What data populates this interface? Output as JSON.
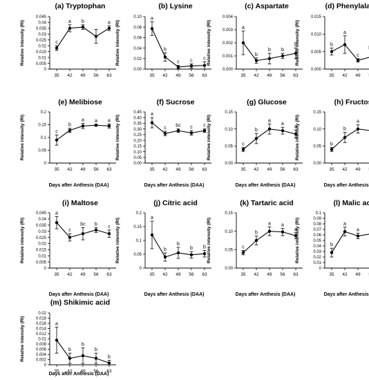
{
  "chart_data": [
    {
      "type": "line",
      "title": "(a) Tryptophan",
      "xlabel": "",
      "ylabel": "Relative intensity (RI)",
      "x": [
        35,
        42,
        49,
        56,
        63
      ],
      "ylim": [
        0,
        0.045
      ],
      "yticks": [
        "0",
        "0.005",
        "0.01",
        "0.015",
        "0.02",
        "0.025",
        "0.03",
        "0.035",
        "0.04",
        "0.045"
      ],
      "series": [
        {
          "values": [
            0.018,
            0.035,
            0.036,
            0.028,
            0.035
          ],
          "errors": [
            0.002,
            0.003,
            0.002,
            0.006,
            0.002
          ]
        }
      ],
      "letters": [
        "c",
        "a",
        "b",
        "",
        "a"
      ]
    },
    {
      "type": "line",
      "title": "(b) Lysine",
      "xlabel": "",
      "ylabel": "Relative intensity (RI)",
      "x": [
        35,
        42,
        49,
        56,
        63
      ],
      "ylim": [
        0,
        0.1
      ],
      "yticks": [
        "0.00",
        "0.02",
        "0.04",
        "0.06",
        "0.08",
        "0.10"
      ],
      "series": [
        {
          "values": [
            0.077,
            0.023,
            0.004,
            0.006,
            0.007
          ],
          "errors": [
            0.013,
            0.008,
            0.003,
            0.004,
            0.007
          ]
        }
      ],
      "letters": [
        "a",
        "b",
        "c",
        "c",
        "c"
      ]
    },
    {
      "type": "line",
      "title": "(c) Aspartate",
      "xlabel": "",
      "ylabel": "Relative intensity (RI)",
      "x": [
        35,
        42,
        49,
        56,
        63
      ],
      "ylim": [
        0,
        0.004
      ],
      "yticks": [
        "0.000",
        "0.001",
        "0.002",
        "0.003",
        "0.004"
      ],
      "series": [
        {
          "values": [
            0.002,
            0.00065,
            0.0008,
            0.001,
            0.0012
          ],
          "errors": [
            0.0009,
            0.0002,
            0.0004,
            0.0002,
            0.0004
          ]
        }
      ],
      "letters": [
        "a",
        "b",
        "b",
        "b",
        "b"
      ]
    },
    {
      "type": "line",
      "title": "(d) Phenylalanine",
      "xlabel": "",
      "ylabel": "Relative intensity (RI)",
      "x": [
        35,
        42,
        49,
        56,
        63
      ],
      "ylim": [
        0,
        0.015
      ],
      "yticks": [
        "0.000",
        "0.005",
        "0.010",
        "0.015"
      ],
      "series": [
        {
          "values": [
            0.005,
            0.007,
            0.0025,
            0.0035,
            0.0025
          ],
          "errors": [
            0.001,
            0.0025,
            0.0005,
            0.0015,
            0.0004
          ]
        }
      ],
      "letters": [
        "b",
        "a",
        "c",
        "bc",
        "c"
      ]
    },
    {
      "type": "line",
      "title": "(e) Melibiose",
      "xlabel": "Days after Anthesis (DAA)",
      "ylabel": "Relative intensity (RI)",
      "x": [
        35,
        42,
        49,
        56,
        63
      ],
      "ylim": [
        0,
        0.2
      ],
      "yticks": [
        "0",
        "0.05",
        "0.1",
        "0.15",
        "0.2"
      ],
      "series": [
        {
          "values": [
            0.09,
            0.128,
            0.145,
            0.148,
            0.145
          ],
          "errors": [
            0.02,
            0.008,
            0.01,
            0.004,
            0.008
          ]
        }
      ],
      "letters": [
        "c",
        "b",
        "a",
        "a",
        "a"
      ]
    },
    {
      "type": "line",
      "title": "(f) Sucrose",
      "xlabel": "Days after Anthesis (DAA)",
      "ylabel": "Relative intensity (RI)",
      "x": [
        35,
        42,
        49,
        56,
        63
      ],
      "ylim": [
        0,
        0.45
      ],
      "yticks": [
        "0.00",
        "0.05",
        "0.10",
        "0.15",
        "0.20",
        "0.25",
        "0.30",
        "0.35",
        "0.40",
        "0.45"
      ],
      "series": [
        {
          "values": [
            0.355,
            0.26,
            0.285,
            0.265,
            0.285
          ],
          "errors": [
            0.045,
            0.02,
            0.015,
            0.02,
            0.015
          ]
        }
      ],
      "letters": [
        "a",
        "c",
        "bc",
        "c",
        "c"
      ]
    },
    {
      "type": "line",
      "title": "(g) Glucose",
      "xlabel": "Days after Anthesis (DAA)",
      "ylabel": "Relative intensity (RI)",
      "x": [
        35,
        42,
        49,
        56,
        63
      ],
      "ylim": [
        0,
        0.15
      ],
      "yticks": [
        "0.00",
        "0.05",
        "0.10",
        "0.15"
      ],
      "series": [
        {
          "values": [
            0.04,
            0.072,
            0.1,
            0.095,
            0.085
          ],
          "errors": [
            0.006,
            0.015,
            0.015,
            0.01,
            0.012
          ]
        }
      ],
      "letters": [
        "c",
        "b",
        "a",
        "a",
        "a"
      ]
    },
    {
      "type": "line",
      "title": "(h) Fructose",
      "xlabel": "Days after Anthesis (DAA)",
      "ylabel": "Relative intensity (RI)",
      "x": [
        35,
        42,
        49,
        56,
        63
      ],
      "ylim": [
        0,
        0.15
      ],
      "yticks": [
        "0.00",
        "0.05",
        "0.10",
        "0.15"
      ],
      "series": [
        {
          "values": [
            0.04,
            0.075,
            0.1,
            0.095,
            0.085
          ],
          "errors": [
            0.006,
            0.015,
            0.012,
            0.01,
            0.02
          ]
        }
      ],
      "letters": [
        "b",
        "b",
        "a",
        "a",
        "a"
      ]
    },
    {
      "type": "line",
      "title": "(i) Maltose",
      "xlabel": "Days after Anthesis (DAA)",
      "ylabel": "Relative intensity (RI)",
      "x": [
        35,
        42,
        49,
        56,
        63
      ],
      "ylim": [
        0,
        0.045
      ],
      "yticks": [
        "0",
        "0.005",
        "0.01",
        "0.015",
        "0.02",
        "0.025",
        "0.03",
        "0.035",
        "0.04",
        "0.045"
      ],
      "series": [
        {
          "values": [
            0.037,
            0.025,
            0.028,
            0.031,
            0.028
          ],
          "errors": [
            0.005,
            0.003,
            0.005,
            0.002,
            0.003
          ]
        }
      ],
      "letters": [
        "a",
        "c",
        "bc",
        "b",
        "c"
      ]
    },
    {
      "type": "line",
      "title": "(j) Citric acid",
      "xlabel": "Days after Anthesis (DAA)",
      "ylabel": "Relative intensity (RI)",
      "x": [
        35,
        42,
        49,
        56,
        63
      ],
      "ylim": [
        0,
        0.2
      ],
      "yticks": [
        "0",
        "0.05",
        "0.1",
        "0.15",
        "0.2"
      ],
      "series": [
        {
          "values": [
            0.12,
            0.04,
            0.055,
            0.048,
            0.052
          ],
          "errors": [
            0.05,
            0.015,
            0.02,
            0.012,
            0.012
          ]
        }
      ],
      "letters": [
        "a",
        "b",
        "b",
        "b",
        "b"
      ]
    },
    {
      "type": "line",
      "title": "(k) Tartaric acid",
      "xlabel": "Days after Anthesis (DAA)",
      "ylabel": "Relative intensity (RI)",
      "x": [
        35,
        42,
        49,
        56,
        63
      ],
      "ylim": [
        0,
        0.15
      ],
      "yticks": [
        "0.00",
        "0.05",
        "0.10",
        "0.15"
      ],
      "series": [
        {
          "values": [
            0.042,
            0.075,
            0.1,
            0.098,
            0.088
          ],
          "errors": [
            0.006,
            0.012,
            0.012,
            0.01,
            0.008
          ]
        }
      ],
      "letters": [
        "c",
        "b",
        "a",
        "a",
        "a"
      ]
    },
    {
      "type": "line",
      "title": "(l) Malic acid",
      "xlabel": "Days after Anthesis (DAA)",
      "ylabel": "Relative intensity (RI)",
      "x": [
        35,
        42,
        49,
        56,
        63
      ],
      "ylim": [
        0,
        0.1
      ],
      "yticks": [
        "0",
        "0.01",
        "0.02",
        "0.03",
        "0.04",
        "0.05",
        "0.06",
        "0.07",
        "0.08",
        "0.09",
        "0.1"
      ],
      "series": [
        {
          "values": [
            0.028,
            0.066,
            0.058,
            0.062,
            0.065
          ],
          "errors": [
            0.008,
            0.008,
            0.005,
            0.004,
            0.01
          ]
        }
      ],
      "letters": [
        "b",
        "a",
        "a",
        "a",
        "a"
      ]
    },
    {
      "type": "line",
      "title": "(m) Shikimic acid",
      "xlabel": "Days after Anthesis (DAA)",
      "ylabel": "Relative intensity (RI)",
      "x": [
        35,
        42,
        49,
        56,
        63
      ],
      "ylim": [
        0,
        0.02
      ],
      "yticks": [
        "0",
        "0.002",
        "0.004",
        "0.006",
        "0.008",
        "0.01",
        "0.012",
        "0.014",
        "0.016",
        "0.018",
        "0.02"
      ],
      "series": [
        {
          "values": [
            0.0095,
            0.0025,
            0.0035,
            0.0025,
            0.0007
          ],
          "errors": [
            0.005,
            0.002,
            0.003,
            0.002,
            0.001
          ]
        }
      ],
      "letters": [
        "a",
        "b",
        "b",
        "b",
        "b"
      ]
    }
  ]
}
